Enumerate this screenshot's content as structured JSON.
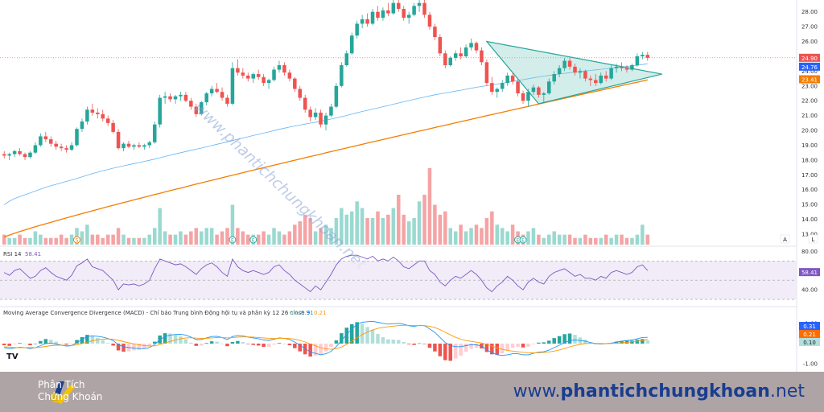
{
  "chart_data": {
    "type": "candlestick",
    "watermark": "www.phantichchungkhoan.net",
    "price_axis": {
      "ticks": [
        "28.00",
        "27.00",
        "26.00",
        "25.00",
        "24.00",
        "23.00",
        "22.00",
        "21.00",
        "20.00",
        "19.00",
        "18.00",
        "17.00",
        "16.00",
        "15.00",
        "14.00",
        "13.00"
      ],
      "ticks_num": [
        28,
        27,
        26,
        25,
        24,
        23,
        22,
        21,
        20,
        19,
        18,
        17,
        16,
        15,
        14,
        13
      ],
      "range": [
        12.4,
        28.8
      ],
      "last_price": "24.90",
      "ma_short": "24.76",
      "ma_long": "23.41",
      "colors": {
        "up": "#26a69a",
        "down": "#ef5350",
        "ma_short": "#64b5f6",
        "ma_long": "#f57c00",
        "triangle": "#26a69a"
      }
    },
    "candles": [
      [
        18.4,
        18.6,
        18.1,
        18.3
      ],
      [
        18.3,
        18.5,
        18.0,
        18.4
      ],
      [
        18.4,
        18.7,
        18.2,
        18.6
      ],
      [
        18.6,
        18.8,
        18.3,
        18.4
      ],
      [
        18.4,
        18.5,
        18.0,
        18.2
      ],
      [
        18.2,
        18.6,
        18.1,
        18.5
      ],
      [
        18.5,
        19.2,
        18.4,
        19.0
      ],
      [
        19.0,
        19.8,
        18.9,
        19.6
      ],
      [
        19.6,
        19.9,
        19.2,
        19.4
      ],
      [
        19.4,
        19.6,
        18.9,
        19.1
      ],
      [
        19.1,
        19.3,
        18.7,
        18.9
      ],
      [
        18.9,
        19.1,
        18.6,
        18.8
      ],
      [
        18.8,
        19.0,
        18.5,
        18.7
      ],
      [
        18.7,
        19.2,
        18.6,
        19.0
      ],
      [
        19.0,
        20.2,
        18.9,
        20.1
      ],
      [
        20.1,
        20.8,
        19.9,
        20.6
      ],
      [
        20.6,
        21.6,
        20.4,
        21.4
      ],
      [
        21.4,
        21.8,
        21.0,
        21.2
      ],
      [
        21.2,
        21.5,
        20.8,
        21.1
      ],
      [
        21.1,
        21.4,
        20.6,
        20.8
      ],
      [
        20.8,
        21.0,
        20.3,
        20.5
      ],
      [
        20.5,
        20.7,
        19.8,
        19.9
      ],
      [
        19.9,
        20.1,
        18.7,
        18.8
      ],
      [
        18.8,
        19.2,
        18.6,
        19.1
      ],
      [
        19.1,
        19.3,
        18.8,
        18.9
      ],
      [
        18.9,
        19.1,
        18.7,
        19.0
      ],
      [
        19.0,
        19.2,
        18.8,
        18.9
      ],
      [
        18.9,
        19.1,
        18.7,
        19.0
      ],
      [
        19.0,
        19.3,
        18.8,
        19.2
      ],
      [
        19.2,
        20.6,
        19.1,
        20.4
      ],
      [
        20.4,
        22.4,
        20.2,
        22.2
      ],
      [
        22.2,
        22.6,
        21.8,
        22.3
      ],
      [
        22.3,
        22.5,
        21.9,
        22.1
      ],
      [
        22.1,
        22.4,
        21.8,
        22.3
      ],
      [
        22.3,
        22.6,
        22.0,
        22.4
      ],
      [
        22.4,
        22.6,
        21.9,
        22.0
      ],
      [
        22.0,
        22.2,
        21.4,
        21.6
      ],
      [
        21.6,
        21.8,
        20.9,
        21.1
      ],
      [
        21.1,
        22.0,
        21.0,
        21.9
      ],
      [
        21.9,
        22.6,
        21.7,
        22.5
      ],
      [
        22.5,
        23.0,
        22.3,
        22.8
      ],
      [
        22.8,
        23.2,
        22.5,
        22.6
      ],
      [
        22.6,
        22.9,
        22.0,
        22.2
      ],
      [
        22.2,
        22.4,
        21.6,
        21.8
      ],
      [
        21.8,
        24.6,
        21.7,
        24.2
      ],
      [
        24.2,
        24.8,
        23.7,
        23.9
      ],
      [
        23.9,
        24.2,
        23.5,
        23.7
      ],
      [
        23.7,
        23.9,
        23.3,
        23.5
      ],
      [
        23.5,
        23.9,
        23.2,
        23.8
      ],
      [
        23.8,
        24.1,
        23.4,
        23.6
      ],
      [
        23.6,
        23.8,
        23.0,
        23.2
      ],
      [
        23.2,
        23.5,
        22.8,
        23.4
      ],
      [
        23.4,
        24.3,
        23.3,
        24.1
      ],
      [
        24.1,
        24.7,
        23.9,
        24.4
      ],
      [
        24.4,
        24.6,
        23.7,
        23.9
      ],
      [
        23.9,
        24.1,
        23.3,
        23.5
      ],
      [
        23.5,
        23.6,
        22.6,
        22.8
      ],
      [
        22.8,
        23.0,
        22.0,
        22.2
      ],
      [
        22.2,
        22.4,
        21.2,
        21.4
      ],
      [
        21.4,
        21.6,
        20.6,
        20.9
      ],
      [
        20.9,
        21.5,
        20.7,
        21.2
      ],
      [
        21.2,
        21.4,
        20.2,
        20.4
      ],
      [
        20.4,
        21.2,
        20.0,
        21.0
      ],
      [
        21.0,
        21.8,
        20.9,
        21.6
      ],
      [
        21.6,
        23.2,
        21.5,
        23.0
      ],
      [
        23.0,
        24.6,
        22.9,
        24.4
      ],
      [
        24.4,
        25.4,
        24.3,
        25.2
      ],
      [
        25.2,
        26.6,
        25.1,
        26.4
      ],
      [
        26.4,
        27.4,
        26.2,
        27.2
      ],
      [
        27.2,
        27.8,
        26.9,
        27.5
      ],
      [
        27.5,
        27.9,
        27.0,
        27.2
      ],
      [
        27.2,
        28.2,
        27.1,
        28.0
      ],
      [
        28.0,
        28.4,
        27.4,
        27.6
      ],
      [
        27.6,
        28.3,
        27.4,
        28.1
      ],
      [
        28.1,
        28.6,
        27.7,
        27.9
      ],
      [
        27.9,
        28.8,
        27.8,
        28.6
      ],
      [
        28.6,
        28.8,
        28.0,
        28.2
      ],
      [
        28.2,
        28.4,
        27.4,
        27.6
      ],
      [
        27.6,
        28.0,
        27.2,
        27.8
      ],
      [
        27.8,
        28.6,
        27.7,
        28.4
      ],
      [
        28.4,
        28.8,
        28.0,
        28.6
      ],
      [
        28.6,
        28.8,
        27.6,
        27.8
      ],
      [
        27.8,
        28.0,
        26.8,
        27.0
      ],
      [
        27.0,
        27.2,
        26.1,
        26.3
      ],
      [
        26.3,
        26.5,
        25.0,
        25.2
      ],
      [
        25.2,
        25.4,
        24.2,
        24.4
      ],
      [
        24.4,
        25.0,
        24.3,
        24.9
      ],
      [
        24.9,
        25.4,
        24.7,
        25.2
      ],
      [
        25.2,
        25.6,
        24.8,
        25.0
      ],
      [
        25.0,
        25.8,
        24.9,
        25.6
      ],
      [
        25.6,
        26.2,
        25.4,
        25.9
      ],
      [
        25.9,
        26.0,
        25.2,
        25.4
      ],
      [
        25.4,
        25.6,
        24.4,
        24.6
      ],
      [
        24.6,
        24.8,
        23.0,
        23.2
      ],
      [
        23.2,
        23.6,
        22.4,
        22.6
      ],
      [
        22.6,
        22.9,
        22.2,
        22.8
      ],
      [
        22.8,
        23.4,
        22.6,
        23.2
      ],
      [
        23.2,
        23.9,
        23.0,
        23.7
      ],
      [
        23.7,
        23.9,
        23.1,
        23.3
      ],
      [
        23.3,
        23.5,
        22.3,
        22.5
      ],
      [
        22.5,
        22.7,
        21.8,
        22.0
      ],
      [
        22.0,
        22.8,
        21.6,
        22.6
      ],
      [
        22.6,
        23.1,
        22.4,
        22.9
      ],
      [
        22.9,
        23.0,
        22.2,
        22.4
      ],
      [
        22.4,
        22.6,
        21.9,
        22.5
      ],
      [
        22.5,
        23.5,
        22.4,
        23.3
      ],
      [
        23.3,
        24.0,
        23.1,
        23.8
      ],
      [
        23.8,
        24.4,
        23.6,
        24.2
      ],
      [
        24.2,
        24.9,
        24.0,
        24.7
      ],
      [
        24.7,
        24.9,
        24.1,
        24.3
      ],
      [
        24.3,
        24.5,
        23.7,
        23.9
      ],
      [
        23.9,
        24.2,
        23.5,
        24.0
      ],
      [
        24.0,
        24.1,
        23.3,
        23.5
      ],
      [
        23.5,
        23.7,
        23.0,
        23.4
      ],
      [
        23.4,
        23.8,
        23.0,
        23.2
      ],
      [
        23.2,
        23.9,
        23.1,
        23.7
      ],
      [
        23.7,
        24.0,
        23.3,
        23.5
      ],
      [
        23.5,
        24.4,
        23.4,
        24.2
      ],
      [
        24.2,
        24.5,
        23.9,
        24.3
      ],
      [
        24.3,
        24.6,
        24.0,
        24.2
      ],
      [
        24.2,
        24.4,
        23.9,
        24.1
      ],
      [
        24.1,
        24.5,
        24.0,
        24.4
      ],
      [
        24.4,
        25.2,
        24.3,
        25.0
      ],
      [
        25.0,
        25.3,
        24.8,
        25.1
      ],
      [
        25.1,
        25.3,
        24.7,
        24.9
      ]
    ],
    "volumes": [
      3,
      2,
      2,
      3,
      2,
      2,
      4,
      3,
      2,
      2,
      2,
      3,
      2,
      3,
      5,
      4,
      6,
      3,
      3,
      2,
      3,
      3,
      5,
      3,
      2,
      2,
      2,
      2,
      3,
      5,
      11,
      4,
      3,
      3,
      4,
      3,
      4,
      5,
      4,
      5,
      5,
      3,
      4,
      5,
      12,
      5,
      4,
      3,
      3,
      3,
      4,
      3,
      5,
      4,
      3,
      4,
      6,
      7,
      9,
      8,
      4,
      5,
      6,
      5,
      8,
      11,
      9,
      10,
      13,
      11,
      8,
      8,
      10,
      8,
      9,
      11,
      15,
      9,
      7,
      8,
      13,
      15,
      23,
      12,
      9,
      10,
      5,
      4,
      6,
      4,
      5,
      6,
      5,
      8,
      10,
      6,
      5,
      4,
      6,
      4,
      3,
      4,
      5,
      3,
      2,
      3,
      4,
      3,
      3,
      3,
      2,
      2,
      3,
      2,
      2,
      2,
      3,
      2,
      3,
      3,
      2,
      2,
      3,
      6,
      3
    ],
    "indicator_markers": [
      "S",
      "E",
      "E",
      "E",
      "E"
    ],
    "volume_labels": [
      "A",
      "L"
    ],
    "rsi": {
      "label": "RSI 14",
      "value": "58.41",
      "ticks": [
        "80.00",
        "40.00"
      ],
      "ticks_num": [
        80,
        40
      ],
      "range": [
        25,
        82
      ],
      "band": [
        30,
        70
      ],
      "values": [
        58,
        55,
        60,
        62,
        57,
        52,
        54,
        60,
        63,
        58,
        54,
        52,
        50,
        55,
        65,
        68,
        72,
        64,
        62,
        60,
        55,
        50,
        40,
        46,
        45,
        46,
        44,
        46,
        50,
        62,
        72,
        70,
        68,
        66,
        67,
        64,
        60,
        56,
        62,
        66,
        68,
        64,
        58,
        54,
        72,
        64,
        60,
        58,
        60,
        58,
        56,
        58,
        64,
        66,
        60,
        56,
        50,
        46,
        42,
        38,
        44,
        40,
        48,
        56,
        66,
        72,
        75,
        76,
        76,
        74,
        72,
        75,
        70,
        72,
        70,
        74,
        70,
        64,
        62,
        66,
        70,
        70,
        60,
        56,
        48,
        44,
        50,
        54,
        52,
        56,
        60,
        56,
        50,
        42,
        38,
        44,
        48,
        54,
        50,
        44,
        40,
        48,
        52,
        48,
        46,
        54,
        58,
        60,
        62,
        58,
        54,
        56,
        52,
        52,
        50,
        54,
        52,
        58,
        60,
        58,
        56,
        58,
        64,
        66,
        60
      ]
    },
    "macd": {
      "label": "Moving Average Convergence Divergence (MACD) - Chỉ báo Trung bình Động hội tụ và phân kỳ 12 26 close 9",
      "val_hist": "0.10",
      "val_macd": "0.31",
      "val_signal": "0.21",
      "ticks": [
        "1.00",
        "-1.00"
      ],
      "ticks_num": [
        1,
        -1
      ],
      "badges": [
        "0.31",
        "0.21",
        "0.10"
      ],
      "range": [
        -1.15,
        1.15
      ],
      "line_macd": [
        -0.2,
        -0.25,
        -0.22,
        -0.18,
        -0.2,
        -0.25,
        -0.2,
        -0.1,
        0,
        0.02,
        -0.02,
        -0.08,
        -0.12,
        -0.1,
        0.05,
        0.2,
        0.35,
        0.38,
        0.36,
        0.32,
        0.25,
        0.15,
        -0.05,
        -0.15,
        -0.2,
        -0.22,
        -0.25,
        -0.25,
        -0.2,
        -0.05,
        0.2,
        0.35,
        0.42,
        0.45,
        0.46,
        0.42,
        0.32,
        0.2,
        0.2,
        0.28,
        0.35,
        0.36,
        0.3,
        0.2,
        0.35,
        0.4,
        0.38,
        0.32,
        0.28,
        0.24,
        0.18,
        0.16,
        0.22,
        0.28,
        0.26,
        0.2,
        0.08,
        -0.08,
        -0.25,
        -0.42,
        -0.48,
        -0.55,
        -0.5,
        -0.38,
        -0.15,
        0.15,
        0.45,
        0.72,
        0.95,
        1.05,
        1.08,
        1.1,
        1.05,
        1.0,
        0.96,
        0.98,
        1.0,
        0.95,
        0.88,
        0.85,
        0.9,
        0.88,
        0.72,
        0.55,
        0.3,
        0.05,
        -0.1,
        -0.15,
        -0.15,
        -0.1,
        -0.05,
        -0.06,
        -0.12,
        -0.3,
        -0.45,
        -0.55,
        -0.58,
        -0.55,
        -0.5,
        -0.5,
        -0.55,
        -0.55,
        -0.48,
        -0.42,
        -0.4,
        -0.32,
        -0.2,
        -0.08,
        0.05,
        0.15,
        0.18,
        0.15,
        0.12,
        0.05,
        0,
        -0.02,
        0,
        0.02,
        0.08,
        0.12,
        0.15,
        0.18,
        0.24,
        0.3,
        0.31
      ],
      "line_signal": [
        -0.15,
        -0.18,
        -0.2,
        -0.2,
        -0.2,
        -0.2,
        -0.2,
        -0.18,
        -0.14,
        -0.1,
        -0.08,
        -0.08,
        -0.09,
        -0.09,
        -0.06,
        0,
        0.08,
        0.14,
        0.19,
        0.22,
        0.23,
        0.21,
        0.16,
        0.1,
        0.04,
        -0.01,
        -0.06,
        -0.1,
        -0.12,
        -0.11,
        -0.05,
        0.03,
        0.11,
        0.18,
        0.24,
        0.28,
        0.29,
        0.27,
        0.26,
        0.26,
        0.28,
        0.3,
        0.3,
        0.28,
        0.3,
        0.32,
        0.33,
        0.33,
        0.32,
        0.3,
        0.28,
        0.26,
        0.25,
        0.26,
        0.26,
        0.25,
        0.22,
        0.16,
        0.08,
        -0.02,
        -0.11,
        -0.2,
        -0.26,
        -0.28,
        -0.25,
        -0.17,
        -0.04,
        0.12,
        0.29,
        0.44,
        0.57,
        0.67,
        0.75,
        0.8,
        0.83,
        0.86,
        0.89,
        0.9,
        0.9,
        0.89,
        0.89,
        0.89,
        0.85,
        0.79,
        0.69,
        0.56,
        0.43,
        0.31,
        0.22,
        0.15,
        0.11,
        0.07,
        0.03,
        -0.04,
        -0.12,
        -0.21,
        -0.28,
        -0.34,
        -0.37,
        -0.4,
        -0.43,
        -0.45,
        -0.46,
        -0.45,
        -0.44,
        -0.41,
        -0.37,
        -0.31,
        -0.24,
        -0.16,
        -0.09,
        -0.04,
        0,
        0.01,
        0.01,
        0,
        0,
        0.01,
        0.02,
        0.04,
        0.06,
        0.09,
        0.12,
        0.16,
        0.21
      ]
    }
  },
  "footer": {
    "brand_line1": "Phân Tích",
    "brand_line2": "Chứng Khoán",
    "url_prefix": "www.",
    "url_main": "phantichchungkhoan",
    "url_suffix": ".net"
  }
}
